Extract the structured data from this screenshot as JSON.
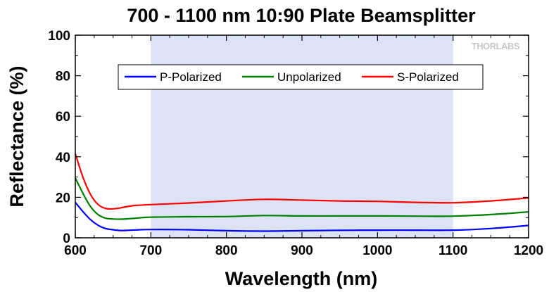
{
  "chart_data": {
    "type": "line",
    "title": "700 - 1100 nm 10:90 Plate Beamsplitter",
    "xlabel": "Wavelength (nm)",
    "ylabel": "Reflectance (%)",
    "xlim": [
      600,
      1200
    ],
    "ylim": [
      0,
      100
    ],
    "xticks": [
      600,
      700,
      800,
      900,
      1000,
      1100,
      1200
    ],
    "yticks": [
      0,
      20,
      40,
      60,
      80,
      100
    ],
    "x_minor_step": 25,
    "y_minor_step": 10,
    "shaded_band": [
      700,
      1100
    ],
    "grid": "none",
    "legend_position": "top-center",
    "watermark": "THORLABS",
    "series": [
      {
        "name": "P-Polarized",
        "color": "#0000ff",
        "x": [
          600,
          610,
          620,
          630,
          640,
          650,
          660,
          670,
          680,
          700,
          750,
          800,
          850,
          900,
          950,
          1000,
          1050,
          1100,
          1150,
          1200
        ],
        "y": [
          17.5,
          13,
          9,
          6.2,
          4.6,
          4.0,
          3.6,
          3.7,
          3.9,
          4.1,
          4.0,
          3.5,
          3.3,
          3.5,
          3.7,
          3.8,
          3.8,
          3.8,
          4.6,
          6.1
        ]
      },
      {
        "name": "Unpolarized",
        "color": "#008000",
        "x": [
          600,
          610,
          620,
          630,
          640,
          650,
          660,
          670,
          680,
          700,
          750,
          800,
          850,
          900,
          950,
          1000,
          1050,
          1100,
          1150,
          1200
        ],
        "y": [
          29.5,
          22,
          15.5,
          11.5,
          9.7,
          9.3,
          9.2,
          9.4,
          9.7,
          10.2,
          10.4,
          10.5,
          11.0,
          10.8,
          10.8,
          10.8,
          10.7,
          10.7,
          11.5,
          12.8
        ]
      },
      {
        "name": "S-Polarized",
        "color": "#ff0000",
        "x": [
          600,
          610,
          620,
          630,
          640,
          650,
          660,
          670,
          680,
          700,
          750,
          800,
          850,
          900,
          950,
          1000,
          1050,
          1100,
          1150,
          1200
        ],
        "y": [
          41.5,
          30,
          21.5,
          16.5,
          14.5,
          14.3,
          14.8,
          15.5,
          16.0,
          16.4,
          17.2,
          18.2,
          19.0,
          18.6,
          18.2,
          18.0,
          17.5,
          17.3,
          18.2,
          19.7
        ]
      }
    ]
  }
}
